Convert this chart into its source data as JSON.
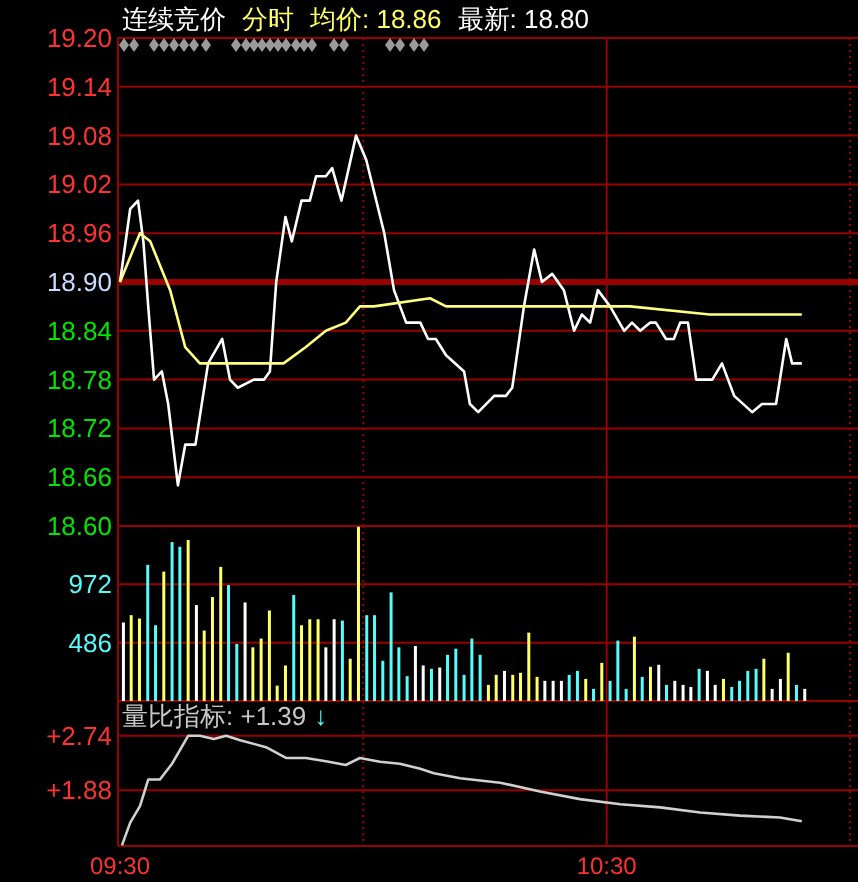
{
  "chart_data": [
    {
      "type": "line",
      "annotations": [
        "连续竞价",
        "分时",
        "均价: 18.86",
        "最新: 18.80"
      ],
      "xlim": [
        9.5,
        11.0
      ],
      "ylim": [
        18.6,
        19.2
      ],
      "yticks": [
        {
          "value": 18.6,
          "label": "18.60"
        },
        18.66,
        18.72,
        18.78,
        18.84,
        {
          "value": 18.9,
          "label": "18.90"
        },
        18.96,
        19.02,
        19.08,
        19.14,
        {
          "value": 19.2,
          "label": "19.20"
        }
      ],
      "grid": "y",
      "tick_labels": "y",
      "ref_lines": [
        {
          "axis": "y",
          "value": 18.9,
          "color": "#990000",
          "line_style": "solid"
        },
        {
          "axis": "x",
          "value": 10.0,
          "color": "#990000",
          "line_style": "dotted"
        },
        {
          "axis": "x",
          "value": 10.5,
          "color": "#990000",
          "line_style": "solid"
        },
        {
          "axis": "x",
          "value": 11.0,
          "color": "#990000",
          "line_style": "dotted"
        }
      ],
      "series": [
        {
          "color": "#ffffff",
          "x": [
            9.5,
            9.521,
            9.537,
            9.548,
            9.558,
            9.57,
            9.586,
            9.599,
            9.619,
            9.634,
            9.655,
            9.681,
            9.71,
            9.726,
            9.742,
            9.775,
            9.796,
            9.808,
            9.821,
            9.84,
            9.853,
            9.873,
            9.89,
            9.903,
            9.923,
            9.936,
            9.955,
            9.985,
            10.006,
            10.043,
            10.063,
            10.088,
            10.117,
            10.133,
            10.149,
            10.17,
            10.207,
            10.219,
            10.236,
            10.269,
            10.293,
            10.306,
            10.33,
            10.351,
            10.367,
            10.388,
            10.412,
            10.433,
            10.449,
            10.466,
            10.482,
            10.507,
            10.536,
            10.552,
            10.569,
            10.589,
            10.601,
            10.622,
            10.638,
            10.651,
            10.667,
            10.684,
            10.717,
            10.737,
            10.762,
            10.799,
            10.819,
            10.848,
            10.856,
            10.869,
            10.881,
            10.901
          ],
          "values": [
            18.9,
            18.99,
            19.0,
            18.95,
            18.87,
            18.78,
            18.79,
            18.75,
            18.65,
            18.7,
            18.7,
            18.8,
            18.83,
            18.78,
            18.77,
            18.78,
            18.78,
            18.79,
            18.9,
            18.98,
            18.95,
            19.0,
            19.0,
            19.03,
            19.03,
            19.04,
            19.0,
            19.08,
            19.05,
            18.96,
            18.89,
            18.85,
            18.85,
            18.83,
            18.83,
            18.81,
            18.79,
            18.75,
            18.74,
            18.76,
            18.76,
            18.77,
            18.87,
            18.94,
            18.9,
            18.91,
            18.89,
            18.84,
            18.86,
            18.85,
            18.89,
            18.87,
            18.84,
            18.85,
            18.84,
            18.85,
            18.85,
            18.83,
            18.83,
            18.85,
            18.85,
            18.78,
            18.78,
            18.8,
            18.76,
            18.74,
            18.75,
            18.75,
            18.78,
            18.83,
            18.8,
            18.8
          ]
        },
        {
          "color": "#ffff80",
          "x": [
            9.5,
            9.541,
            9.562,
            9.603,
            9.634,
            9.664,
            9.706,
            9.747,
            9.836,
            9.882,
            9.923,
            9.964,
            9.993,
            10.022,
            10.137,
            10.17,
            10.281,
            10.392,
            10.548,
            10.712,
            10.803,
            10.901
          ],
          "values": [
            18.9,
            18.96,
            18.95,
            18.89,
            18.82,
            18.8,
            18.8,
            18.8,
            18.8,
            18.82,
            18.84,
            18.85,
            18.87,
            18.87,
            18.88,
            18.87,
            18.87,
            18.87,
            18.87,
            18.86,
            18.86,
            18.86
          ]
        }
      ]
    },
    {
      "type": "bar",
      "xlim": [
        9.5,
        11.0
      ],
      "ylim": [
        0,
        1458
      ],
      "yticks": [
        486,
        972
      ],
      "grid": "y",
      "tick_labels": "y",
      "ref_lines": [
        {
          "axis": "x",
          "value": 10.0,
          "color": "#990000",
          "line_style": "dotted"
        },
        {
          "axis": "x",
          "value": 10.5,
          "color": "#990000",
          "line_style": "solid"
        },
        {
          "axis": "x",
          "value": 11.0,
          "color": "#990000",
          "line_style": "dotted"
        }
      ],
      "x": [
        9.507,
        9.523,
        9.54,
        9.557,
        9.573,
        9.59,
        9.607,
        9.623,
        9.64,
        9.657,
        9.673,
        9.69,
        9.707,
        9.723,
        9.74,
        9.757,
        9.773,
        9.79,
        9.807,
        9.823,
        9.84,
        9.857,
        9.873,
        9.89,
        9.907,
        9.923,
        9.94,
        9.957,
        9.973,
        9.99,
        10.007,
        10.023,
        10.04,
        10.057,
        10.073,
        10.09,
        10.107,
        10.123,
        10.14,
        10.157,
        10.173,
        10.19,
        10.207,
        10.223,
        10.24,
        10.257,
        10.273,
        10.29,
        10.307,
        10.323,
        10.34,
        10.357,
        10.373,
        10.39,
        10.407,
        10.423,
        10.44,
        10.457,
        10.473,
        10.49,
        10.507,
        10.523,
        10.54,
        10.557,
        10.573,
        10.59,
        10.607,
        10.623,
        10.64,
        10.657,
        10.673,
        10.69,
        10.707,
        10.723,
        10.74,
        10.757,
        10.773,
        10.79,
        10.807,
        10.823,
        10.84,
        10.857,
        10.873,
        10.89,
        10.907
      ],
      "values": [
        654,
        715,
        687,
        1134,
        631,
        1078,
        1324,
        1285,
        1341,
        799,
        587,
        866,
        1117,
        966,
        475,
        821,
        447,
        520,
        754,
        128,
        296,
        883,
        631,
        681,
        681,
        447,
        681,
        670,
        352,
        1452,
        715,
        715,
        335,
        905,
        447,
        207,
        458,
        296,
        268,
        279,
        385,
        436,
        218,
        520,
        385,
        134,
        218,
        251,
        218,
        235,
        570,
        201,
        168,
        168,
        168,
        218,
        251,
        184,
        101,
        318,
        168,
        503,
        101,
        536,
        201,
        285,
        302,
        134,
        168,
        134,
        117,
        268,
        251,
        134,
        184,
        117,
        168,
        251,
        268,
        352,
        101,
        184,
        402,
        134,
        101
      ],
      "colors": [
        "#ffffff",
        "#ffff66",
        "#ffff66",
        "#54fcfc",
        "#54fcfc",
        "#ffff66",
        "#54fcfc",
        "#54fcfc",
        "#ffff66",
        "#ffffff",
        "#ffff66",
        "#ffff66",
        "#ffff66",
        "#54fcfc",
        "#54fcfc",
        "#ffffff",
        "#ffff66",
        "#ffff66",
        "#ffff66",
        "#ffff66",
        "#ffff66",
        "#54fcfc",
        "#ffff66",
        "#ffff66",
        "#ffff66",
        "#ffffff",
        "#ffffff",
        "#54fcfc",
        "#ffff66",
        "#ffff66",
        "#54fcfc",
        "#54fcfc",
        "#54fcfc",
        "#54fcfc",
        "#54fcfc",
        "#54fcfc",
        "#ffffff",
        "#ffffff",
        "#54fcfc",
        "#ffffff",
        "#54fcfc",
        "#54fcfc",
        "#54fcfc",
        "#54fcfc",
        "#54fcfc",
        "#ffff66",
        "#ffff66",
        "#ffffff",
        "#ffff66",
        "#ffff66",
        "#ffff66",
        "#ffff66",
        "#ffffff",
        "#ffffff",
        "#ffffff",
        "#54fcfc",
        "#54fcfc",
        "#ffff66",
        "#54fcfc",
        "#ffff66",
        "#54fcfc",
        "#54fcfc",
        "#54fcfc",
        "#ffff66",
        "#54fcfc",
        "#ffff66",
        "#ffffff",
        "#54fcfc",
        "#ffffff",
        "#ffffff",
        "#ffffff",
        "#54fcfc",
        "#ffffff",
        "#ffffff",
        "#ffff66",
        "#54fcfc",
        "#54fcfc",
        "#54fcfc",
        "#54fcfc",
        "#ffff66",
        "#ffffff",
        "#ffffff",
        "#ffff66",
        "#54fcfc",
        "#ffffff"
      ]
    },
    {
      "type": "line",
      "title": "量比指标: +1.39",
      "annotations": [
        "↓"
      ],
      "xlim": [
        9.5,
        11.0
      ],
      "ylim": [
        1.0,
        3.29
      ],
      "yticks": [
        {
          "value": 1.88,
          "label": "+1.88"
        },
        {
          "value": 2.74,
          "label": "+2.74"
        }
      ],
      "xticks": [
        {
          "value": 9.5,
          "label": "09:30"
        },
        {
          "value": 10.5,
          "label": "10:30"
        }
      ],
      "grid": "y",
      "ref_lines": [
        {
          "axis": "x",
          "value": 10.0,
          "color": "#990000",
          "line_style": "dotted"
        },
        {
          "axis": "x",
          "value": 10.5,
          "color": "#990000",
          "line_style": "solid"
        },
        {
          "axis": "x",
          "value": 11.0,
          "color": "#990000",
          "line_style": "dotted"
        }
      ],
      "series": [
        {
          "color": "#d0d0d0",
          "x": [
            9.504,
            9.521,
            9.541,
            9.558,
            9.582,
            9.607,
            9.64,
            9.664,
            9.693,
            9.718,
            9.747,
            9.8,
            9.841,
            9.882,
            9.923,
            9.964,
            9.993,
            10.034,
            10.075,
            10.117,
            10.145,
            10.199,
            10.281,
            10.363,
            10.445,
            10.528,
            10.61,
            10.692,
            10.774,
            10.856,
            10.901
          ],
          "values": [
            1.01,
            1.37,
            1.63,
            2.05,
            2.05,
            2.3,
            2.74,
            2.74,
            2.69,
            2.74,
            2.67,
            2.56,
            2.39,
            2.39,
            2.34,
            2.28,
            2.39,
            2.33,
            2.3,
            2.22,
            2.15,
            2.07,
            2.0,
            1.86,
            1.74,
            1.66,
            1.61,
            1.53,
            1.48,
            1.45,
            1.39
          ]
        }
      ]
    }
  ]
}
